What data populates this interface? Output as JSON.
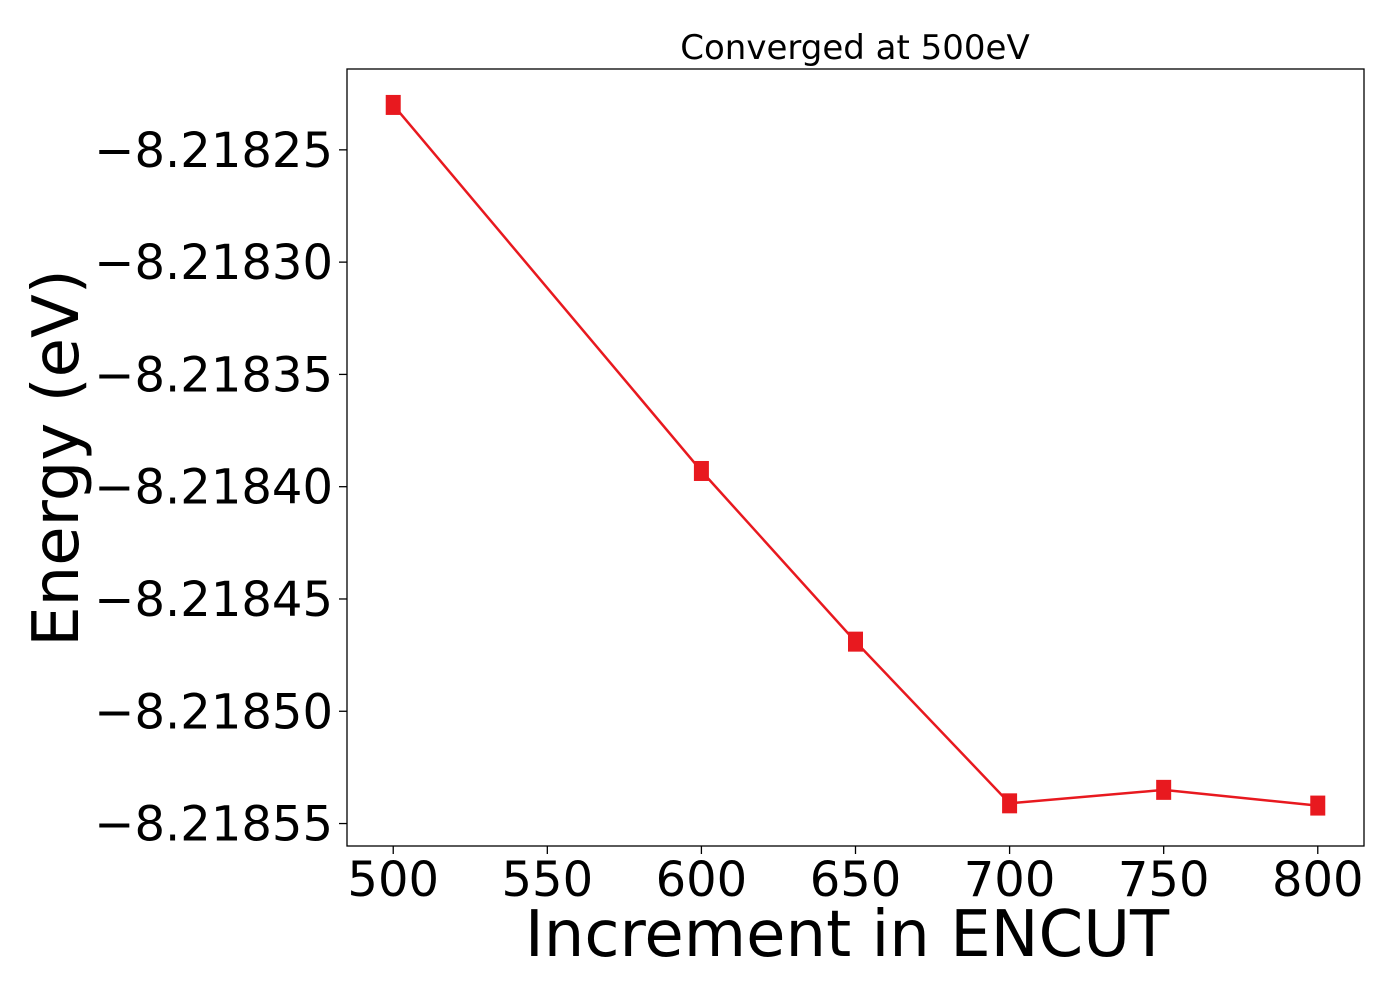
{
  "chart_data": {
    "type": "line",
    "title": "Converged at 500eV",
    "xlabel": "Increment in ENCUT",
    "ylabel": "Energy (eV)",
    "xlim": [
      485,
      815
    ],
    "ylim": [
      -8.21856,
      -8.218214
    ],
    "xticks": [
      500,
      550,
      600,
      650,
      700,
      750,
      800
    ],
    "xtick_labels": [
      "500",
      "550",
      "600",
      "650",
      "700",
      "750",
      "800"
    ],
    "yticks": [
      -8.21825,
      -8.2183,
      -8.21835,
      -8.2184,
      -8.21845,
      -8.2185,
      -8.21855
    ],
    "ytick_labels": [
      "−8.21825",
      "−8.21830",
      "−8.21835",
      "−8.21840",
      "−8.21845",
      "−8.21850",
      "−8.21855"
    ],
    "grid": false,
    "series": [
      {
        "color": "#e8191f",
        "marker": "square",
        "x": [
          500,
          600,
          650,
          700,
          750,
          800
        ],
        "y": [
          -8.21823,
          -8.218393,
          -8.218469,
          -8.218541,
          -8.218535,
          -8.218542
        ]
      }
    ]
  }
}
